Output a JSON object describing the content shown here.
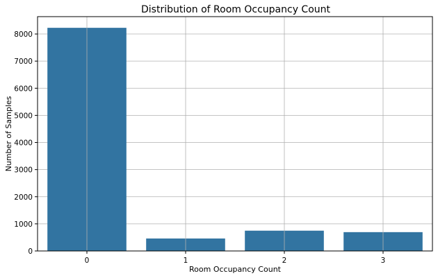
{
  "chart_data": {
    "type": "bar",
    "title": "Distribution of Room Occupancy Count",
    "xlabel": "Room Occupancy Count",
    "ylabel": "Number of Samples",
    "categories": [
      "0",
      "1",
      "2",
      "3"
    ],
    "values": [
      8228,
      459,
      748,
      694
    ],
    "ylim": [
      0,
      8640
    ],
    "yticks": [
      0,
      1000,
      2000,
      3000,
      4000,
      5000,
      6000,
      7000,
      8000
    ],
    "grid": true,
    "bar_color": "#3274a1"
  }
}
